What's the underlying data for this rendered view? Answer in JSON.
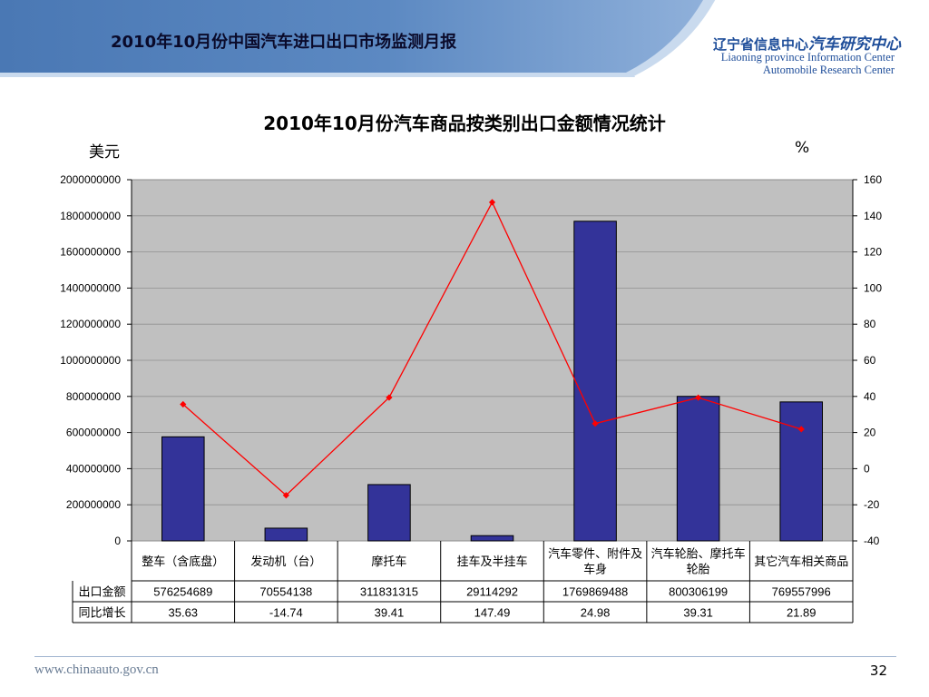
{
  "header": {
    "title": "2010年10月份中国汽车进口出口市场监测月报",
    "org_name_cn_prefix": "辽宁省信息中心",
    "org_name_cn_highlight": "汽车研究中心",
    "org_name_en_line1": "Liaoning province Information Center",
    "org_name_en_line2": "Automobile Research Center",
    "colors": {
      "band_light": "#c9daee",
      "band_dark": "#4a78b4",
      "brand": "#1f4e9a"
    }
  },
  "chart_data": {
    "type": "bar",
    "title": "2010年10月份汽车商品按类别出口金额情况统计",
    "left_axis_unit": "美元",
    "right_axis_unit": "%",
    "categories": [
      "整车（含底盘）",
      "发动机（台）",
      "摩托车",
      "挂车及半挂车",
      "汽车零件、附件及车身",
      "汽车轮胎、摩托车轮胎",
      "其它汽车相关商品"
    ],
    "series": [
      {
        "name": "出口金额",
        "type": "bar",
        "axis": "left",
        "color": "#333399",
        "values": [
          576254689,
          70554138,
          311831315,
          29114292,
          1769869488,
          800306199,
          769557996
        ],
        "labels": [
          "576254689",
          "70554138",
          "311831315",
          "29114292",
          "1769869488",
          "800306199",
          "769557996"
        ]
      },
      {
        "name": "同比增长",
        "type": "line",
        "axis": "right",
        "color": "#ff0000",
        "values": [
          35.63,
          -14.74,
          39.41,
          147.49,
          24.98,
          39.31,
          21.89
        ],
        "labels": [
          "35.63",
          "-14.74",
          "39.41",
          "147.49",
          "24.98",
          "39.31",
          "21.89"
        ]
      }
    ],
    "ylim_left": [
      0,
      2000000000
    ],
    "yticks_left": [
      "0",
      "200000000",
      "400000000",
      "600000000",
      "800000000",
      "1000000000",
      "1200000000",
      "1400000000",
      "1600000000",
      "1800000000",
      "2000000000"
    ],
    "ylim_right": [
      -40,
      160
    ],
    "yticks_right": [
      "-40",
      "-20",
      "0",
      "20",
      "40",
      "60",
      "80",
      "100",
      "120",
      "140",
      "160"
    ],
    "plot_background": "#c0c0c0",
    "grid": true,
    "legend": "data-table"
  },
  "footer": {
    "url": "www.chinaauto.gov.cn",
    "page": "32"
  }
}
